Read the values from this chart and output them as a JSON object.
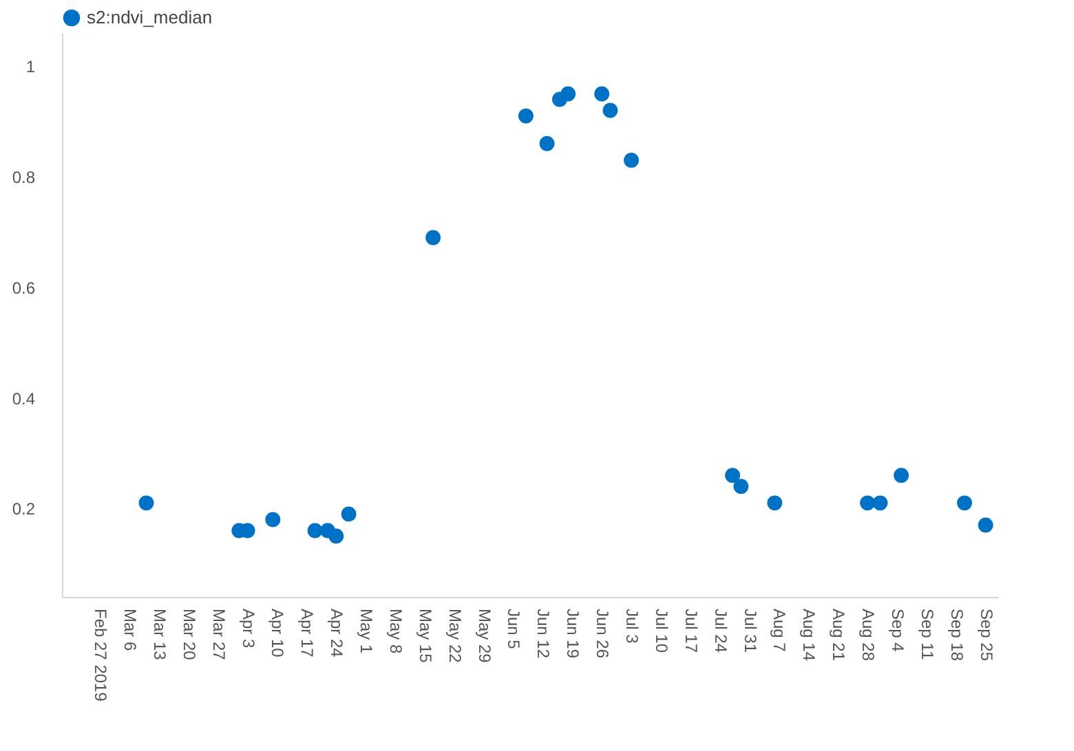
{
  "chart_data": {
    "type": "scatter",
    "legend": "top",
    "marker": "circle",
    "grid": false,
    "x": [
      "2019-03-10",
      "2019-04-01",
      "2019-04-03",
      "2019-04-09",
      "2019-04-19",
      "2019-04-22",
      "2019-04-24",
      "2019-04-27",
      "2019-05-17",
      "2019-06-08",
      "2019-06-13",
      "2019-06-16",
      "2019-06-18",
      "2019-06-26",
      "2019-06-28",
      "2019-07-03",
      "2019-07-27",
      "2019-07-29",
      "2019-08-06",
      "2019-08-28",
      "2019-08-31",
      "2019-09-05",
      "2019-09-20",
      "2019-09-25"
    ],
    "series": [
      {
        "name": "s2:ndvi_median",
        "color": "#0072c6",
        "values": [
          0.21,
          0.16,
          0.16,
          0.18,
          0.16,
          0.16,
          0.15,
          0.19,
          0.69,
          0.91,
          0.86,
          0.94,
          0.95,
          0.95,
          0.92,
          0.83,
          0.26,
          0.24,
          0.21,
          0.21,
          0.21,
          0.26,
          0.21,
          0.17
        ]
      }
    ],
    "xticks": [
      {
        "value": "2019-02-27",
        "label": "Feb 27 2019"
      },
      {
        "value": "2019-03-06",
        "label": "Mar 6"
      },
      {
        "value": "2019-03-13",
        "label": "Mar 13"
      },
      {
        "value": "2019-03-20",
        "label": "Mar 20"
      },
      {
        "value": "2019-03-27",
        "label": "Mar 27"
      },
      {
        "value": "2019-04-03",
        "label": "Apr 3"
      },
      {
        "value": "2019-04-10",
        "label": "Apr 10"
      },
      {
        "value": "2019-04-17",
        "label": "Apr 17"
      },
      {
        "value": "2019-04-24",
        "label": "Apr 24"
      },
      {
        "value": "2019-05-01",
        "label": "May 1"
      },
      {
        "value": "2019-05-08",
        "label": "May 8"
      },
      {
        "value": "2019-05-15",
        "label": "May 15"
      },
      {
        "value": "2019-05-22",
        "label": "May 22"
      },
      {
        "value": "2019-05-29",
        "label": "May 29"
      },
      {
        "value": "2019-06-05",
        "label": "Jun 5"
      },
      {
        "value": "2019-06-12",
        "label": "Jun 12"
      },
      {
        "value": "2019-06-19",
        "label": "Jun 19"
      },
      {
        "value": "2019-06-26",
        "label": "Jun 26"
      },
      {
        "value": "2019-07-03",
        "label": "Jul 3"
      },
      {
        "value": "2019-07-10",
        "label": "Jul 10"
      },
      {
        "value": "2019-07-17",
        "label": "Jul 17"
      },
      {
        "value": "2019-07-24",
        "label": "Jul 24"
      },
      {
        "value": "2019-07-31",
        "label": "Jul 31"
      },
      {
        "value": "2019-08-07",
        "label": "Aug 7"
      },
      {
        "value": "2019-08-14",
        "label": "Aug 14"
      },
      {
        "value": "2019-08-21",
        "label": "Aug 21"
      },
      {
        "value": "2019-08-28",
        "label": "Aug 28"
      },
      {
        "value": "2019-09-04",
        "label": "Sep 4"
      },
      {
        "value": "2019-09-11",
        "label": "Sep 11"
      },
      {
        "value": "2019-09-18",
        "label": "Sep 18"
      },
      {
        "value": "2019-09-25",
        "label": "Sep 25"
      }
    ],
    "xlim": [
      "2019-02-18",
      "2019-09-28"
    ],
    "ylim": [
      0.04,
      1.06
    ],
    "yticks": [
      0.2,
      0.4,
      0.6,
      0.8,
      1
    ]
  }
}
